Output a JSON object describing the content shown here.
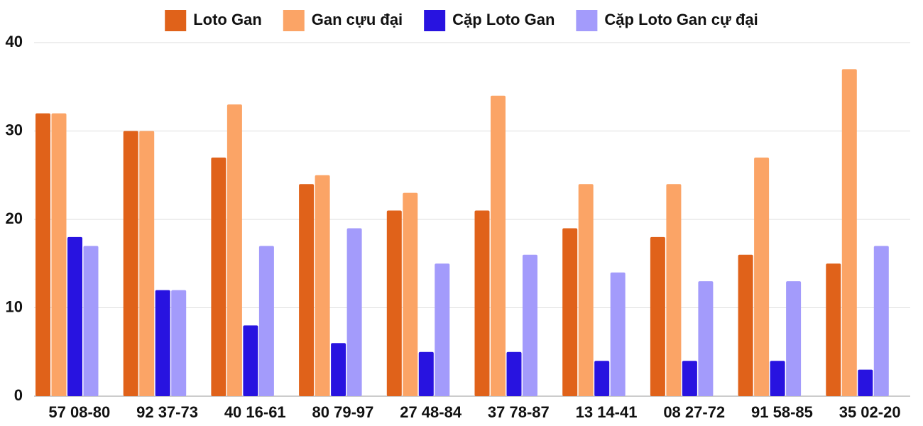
{
  "chart_data": {
    "type": "bar",
    "categories": [
      "57 08-80",
      "92 37-73",
      "40 16-61",
      "80 79-97",
      "27 48-84",
      "37 78-87",
      "13 14-41",
      "08 27-72",
      "91 58-85",
      "35 02-20"
    ],
    "series": [
      {
        "name": "Loto Gan",
        "color": "#e0621a",
        "values": [
          32,
          30,
          27,
          24,
          21,
          21,
          19,
          18,
          16,
          15
        ]
      },
      {
        "name": "Gan cựu đại",
        "color": "#fba466",
        "values": [
          32,
          30,
          33,
          25,
          23,
          34,
          24,
          24,
          27,
          37
        ]
      },
      {
        "name": "Cặp Loto Gan",
        "color": "#2813e0",
        "values": [
          18,
          12,
          8,
          6,
          5,
          5,
          4,
          4,
          4,
          3
        ]
      },
      {
        "name": "Cặp Loto Gan cự đại",
        "color": "#a39bfb",
        "values": [
          17,
          12,
          17,
          19,
          15,
          16,
          14,
          13,
          13,
          17
        ]
      }
    ],
    "ylim": [
      0,
      40
    ],
    "yticks": [
      0,
      10,
      20,
      30,
      40
    ],
    "grid": true,
    "legend": "top"
  }
}
